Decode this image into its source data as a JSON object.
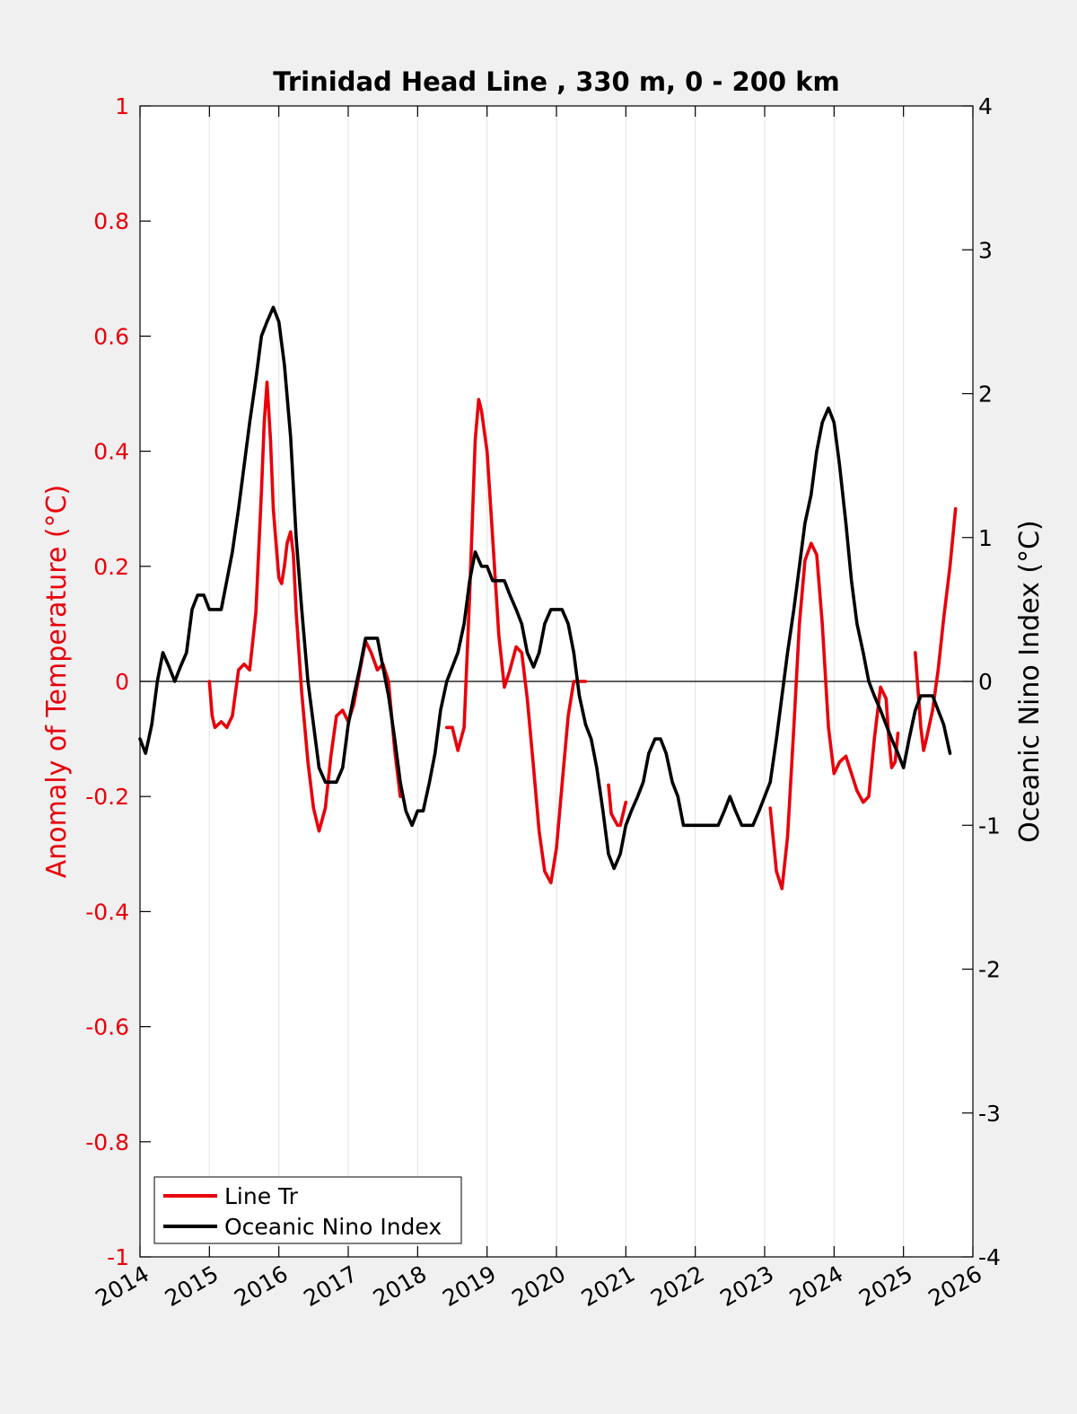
{
  "chart_data": {
    "type": "line",
    "title": "Trinidad Head Line , 330 m, 0 - 200 km",
    "ylabel_left": "Anomaly of Temperature (°C)",
    "ylabel_right": "Oceanic Nino Index (°C)",
    "xlim": [
      2014,
      2026
    ],
    "ylim_left": [
      -1,
      1
    ],
    "ylim_right": [
      -4,
      4
    ],
    "x_ticks": [
      "2014",
      "2015",
      "2016",
      "2017",
      "2018",
      "2019",
      "2020",
      "2021",
      "2022",
      "2023",
      "2024",
      "2025",
      "2026"
    ],
    "y_left_ticks": [
      "-1",
      "-0.8",
      "-0.6",
      "-0.4",
      "-0.2",
      "0",
      "0.2",
      "0.4",
      "0.6",
      "0.8",
      "1"
    ],
    "y_right_ticks": [
      "-4",
      "-3",
      "-2",
      "-1",
      "0",
      "1",
      "2",
      "3",
      "4"
    ],
    "vertical_grid": true,
    "zero_line": true,
    "legend_position": "bottom-left",
    "series": [
      {
        "name": "Line Tr",
        "axis": "left",
        "color": "#e8000b",
        "segments": [
          [
            [
              2015.0,
              0.0
            ],
            [
              2015.04,
              -0.06
            ],
            [
              2015.08,
              -0.08
            ],
            [
              2015.17,
              -0.07
            ],
            [
              2015.25,
              -0.08
            ],
            [
              2015.33,
              -0.06
            ],
            [
              2015.42,
              0.02
            ],
            [
              2015.5,
              0.03
            ],
            [
              2015.58,
              0.02
            ],
            [
              2015.67,
              0.12
            ],
            [
              2015.75,
              0.33
            ],
            [
              2015.79,
              0.45
            ],
            [
              2015.83,
              0.52
            ],
            [
              2015.88,
              0.42
            ],
            [
              2015.92,
              0.3
            ],
            [
              2016.0,
              0.18
            ],
            [
              2016.04,
              0.17
            ],
            [
              2016.08,
              0.2
            ],
            [
              2016.12,
              0.24
            ],
            [
              2016.17,
              0.26
            ],
            [
              2016.21,
              0.22
            ],
            [
              2016.25,
              0.12
            ],
            [
              2016.33,
              -0.02
            ],
            [
              2016.42,
              -0.14
            ],
            [
              2016.5,
              -0.22
            ],
            [
              2016.58,
              -0.26
            ],
            [
              2016.67,
              -0.22
            ],
            [
              2016.75,
              -0.13
            ],
            [
              2016.83,
              -0.06
            ],
            [
              2016.92,
              -0.05
            ],
            [
              2017.0,
              -0.07
            ],
            [
              2017.08,
              -0.04
            ],
            [
              2017.17,
              0.02
            ],
            [
              2017.25,
              0.07
            ],
            [
              2017.33,
              0.05
            ],
            [
              2017.42,
              0.02
            ],
            [
              2017.5,
              0.03
            ],
            [
              2017.58,
              0.0
            ],
            [
              2017.67,
              -0.12
            ],
            [
              2017.75,
              -0.2
            ]
          ],
          [
            [
              2018.42,
              -0.08
            ],
            [
              2018.5,
              -0.08
            ],
            [
              2018.58,
              -0.12
            ],
            [
              2018.67,
              -0.08
            ],
            [
              2018.75,
              0.15
            ],
            [
              2018.83,
              0.42
            ],
            [
              2018.88,
              0.49
            ],
            [
              2018.92,
              0.47
            ],
            [
              2019.0,
              0.4
            ],
            [
              2019.08,
              0.25
            ],
            [
              2019.17,
              0.08
            ],
            [
              2019.25,
              -0.01
            ],
            [
              2019.33,
              0.02
            ],
            [
              2019.42,
              0.06
            ],
            [
              2019.5,
              0.05
            ],
            [
              2019.58,
              -0.03
            ],
            [
              2019.67,
              -0.15
            ],
            [
              2019.75,
              -0.26
            ],
            [
              2019.83,
              -0.33
            ],
            [
              2019.92,
              -0.35
            ],
            [
              2020.0,
              -0.29
            ],
            [
              2020.08,
              -0.18
            ],
            [
              2020.17,
              -0.06
            ],
            [
              2020.25,
              0.0
            ],
            [
              2020.33,
              0.0
            ],
            [
              2020.42,
              0.0
            ]
          ],
          [
            [
              2020.75,
              -0.18
            ],
            [
              2020.79,
              -0.23
            ],
            [
              2020.88,
              -0.25
            ],
            [
              2020.92,
              -0.25
            ],
            [
              2021.0,
              -0.21
            ]
          ],
          [
            [
              2023.08,
              -0.22
            ],
            [
              2023.17,
              -0.33
            ],
            [
              2023.25,
              -0.36
            ],
            [
              2023.33,
              -0.27
            ],
            [
              2023.42,
              -0.08
            ],
            [
              2023.5,
              0.1
            ],
            [
              2023.58,
              0.21
            ],
            [
              2023.67,
              0.24
            ],
            [
              2023.75,
              0.22
            ],
            [
              2023.83,
              0.1
            ],
            [
              2023.92,
              -0.08
            ],
            [
              2024.0,
              -0.16
            ],
            [
              2024.08,
              -0.14
            ],
            [
              2024.17,
              -0.13
            ],
            [
              2024.25,
              -0.16
            ],
            [
              2024.33,
              -0.19
            ],
            [
              2024.42,
              -0.21
            ],
            [
              2024.5,
              -0.2
            ],
            [
              2024.58,
              -0.1
            ],
            [
              2024.67,
              -0.01
            ],
            [
              2024.75,
              -0.03
            ],
            [
              2024.79,
              -0.1
            ],
            [
              2024.83,
              -0.15
            ],
            [
              2024.88,
              -0.14
            ],
            [
              2024.92,
              -0.09
            ]
          ],
          [
            [
              2025.17,
              0.05
            ],
            [
              2025.25,
              -0.08
            ],
            [
              2025.29,
              -0.12
            ],
            [
              2025.33,
              -0.1
            ],
            [
              2025.42,
              -0.05
            ],
            [
              2025.5,
              0.02
            ],
            [
              2025.58,
              0.11
            ],
            [
              2025.67,
              0.2
            ],
            [
              2025.75,
              0.3
            ]
          ]
        ]
      },
      {
        "name": "Oceanic Nino Index",
        "axis": "right",
        "color": "#000000",
        "segments": [
          [
            [
              2014.0,
              -0.4
            ],
            [
              2014.08,
              -0.5
            ],
            [
              2014.17,
              -0.3
            ],
            [
              2014.25,
              0.0
            ],
            [
              2014.33,
              0.2
            ],
            [
              2014.42,
              0.1
            ],
            [
              2014.5,
              0.0
            ],
            [
              2014.58,
              0.1
            ],
            [
              2014.67,
              0.2
            ],
            [
              2014.75,
              0.5
            ],
            [
              2014.83,
              0.6
            ],
            [
              2014.92,
              0.6
            ],
            [
              2015.0,
              0.5
            ],
            [
              2015.08,
              0.5
            ],
            [
              2015.17,
              0.5
            ],
            [
              2015.25,
              0.7
            ],
            [
              2015.33,
              0.9
            ],
            [
              2015.42,
              1.2
            ],
            [
              2015.5,
              1.5
            ],
            [
              2015.58,
              1.8
            ],
            [
              2015.67,
              2.1
            ],
            [
              2015.75,
              2.4
            ],
            [
              2015.83,
              2.5
            ],
            [
              2015.92,
              2.6
            ],
            [
              2016.0,
              2.5
            ],
            [
              2016.08,
              2.2
            ],
            [
              2016.17,
              1.7
            ],
            [
              2016.25,
              1.0
            ],
            [
              2016.33,
              0.5
            ],
            [
              2016.42,
              0.0
            ],
            [
              2016.5,
              -0.3
            ],
            [
              2016.58,
              -0.6
            ],
            [
              2016.67,
              -0.7
            ],
            [
              2016.75,
              -0.7
            ],
            [
              2016.83,
              -0.7
            ],
            [
              2016.92,
              -0.6
            ],
            [
              2017.0,
              -0.3
            ],
            [
              2017.08,
              -0.1
            ],
            [
              2017.17,
              0.1
            ],
            [
              2017.25,
              0.3
            ],
            [
              2017.33,
              0.3
            ],
            [
              2017.42,
              0.3
            ],
            [
              2017.5,
              0.1
            ],
            [
              2017.58,
              -0.1
            ],
            [
              2017.67,
              -0.4
            ],
            [
              2017.75,
              -0.7
            ],
            [
              2017.83,
              -0.9
            ],
            [
              2017.92,
              -1.0
            ],
            [
              2018.0,
              -0.9
            ],
            [
              2018.08,
              -0.9
            ],
            [
              2018.17,
              -0.7
            ],
            [
              2018.25,
              -0.5
            ],
            [
              2018.33,
              -0.2
            ],
            [
              2018.42,
              0.0
            ],
            [
              2018.5,
              0.1
            ],
            [
              2018.58,
              0.2
            ],
            [
              2018.67,
              0.4
            ],
            [
              2018.75,
              0.7
            ],
            [
              2018.83,
              0.9
            ],
            [
              2018.92,
              0.8
            ],
            [
              2019.0,
              0.8
            ],
            [
              2019.08,
              0.7
            ],
            [
              2019.17,
              0.7
            ],
            [
              2019.25,
              0.7
            ],
            [
              2019.33,
              0.6
            ],
            [
              2019.42,
              0.5
            ],
            [
              2019.5,
              0.4
            ],
            [
              2019.58,
              0.2
            ],
            [
              2019.67,
              0.1
            ],
            [
              2019.75,
              0.2
            ],
            [
              2019.83,
              0.4
            ],
            [
              2019.92,
              0.5
            ],
            [
              2020.0,
              0.5
            ],
            [
              2020.08,
              0.5
            ],
            [
              2020.17,
              0.4
            ],
            [
              2020.25,
              0.2
            ],
            [
              2020.33,
              -0.1
            ],
            [
              2020.42,
              -0.3
            ],
            [
              2020.5,
              -0.4
            ],
            [
              2020.58,
              -0.6
            ],
            [
              2020.67,
              -0.9
            ],
            [
              2020.75,
              -1.2
            ],
            [
              2020.83,
              -1.3
            ],
            [
              2020.92,
              -1.2
            ],
            [
              2021.0,
              -1.0
            ],
            [
              2021.08,
              -0.9
            ],
            [
              2021.17,
              -0.8
            ],
            [
              2021.25,
              -0.7
            ],
            [
              2021.33,
              -0.5
            ],
            [
              2021.42,
              -0.4
            ],
            [
              2021.5,
              -0.4
            ],
            [
              2021.58,
              -0.5
            ],
            [
              2021.67,
              -0.7
            ],
            [
              2021.75,
              -0.8
            ],
            [
              2021.83,
              -1.0
            ],
            [
              2021.92,
              -1.0
            ],
            [
              2022.0,
              -1.0
            ],
            [
              2022.08,
              -1.0
            ],
            [
              2022.17,
              -1.0
            ],
            [
              2022.25,
              -1.0
            ],
            [
              2022.33,
              -1.0
            ],
            [
              2022.42,
              -0.9
            ],
            [
              2022.5,
              -0.8
            ],
            [
              2022.58,
              -0.9
            ],
            [
              2022.67,
              -1.0
            ],
            [
              2022.75,
              -1.0
            ],
            [
              2022.83,
              -1.0
            ],
            [
              2022.92,
              -0.9
            ],
            [
              2023.0,
              -0.8
            ],
            [
              2023.08,
              -0.7
            ],
            [
              2023.17,
              -0.4
            ],
            [
              2023.25,
              -0.1
            ],
            [
              2023.33,
              0.2
            ],
            [
              2023.42,
              0.5
            ],
            [
              2023.5,
              0.8
            ],
            [
              2023.58,
              1.1
            ],
            [
              2023.67,
              1.3
            ],
            [
              2023.75,
              1.6
            ],
            [
              2023.83,
              1.8
            ],
            [
              2023.92,
              1.9
            ],
            [
              2024.0,
              1.8
            ],
            [
              2024.08,
              1.5
            ],
            [
              2024.17,
              1.1
            ],
            [
              2024.25,
              0.7
            ],
            [
              2024.33,
              0.4
            ],
            [
              2024.42,
              0.2
            ],
            [
              2024.5,
              0.0
            ],
            [
              2024.58,
              -0.1
            ],
            [
              2024.67,
              -0.2
            ],
            [
              2024.75,
              -0.3
            ],
            [
              2024.83,
              -0.4
            ],
            [
              2024.92,
              -0.5
            ],
            [
              2025.0,
              -0.6
            ],
            [
              2025.08,
              -0.4
            ],
            [
              2025.17,
              -0.2
            ],
            [
              2025.25,
              -0.1
            ],
            [
              2025.33,
              -0.1
            ],
            [
              2025.42,
              -0.1
            ],
            [
              2025.5,
              -0.2
            ],
            [
              2025.58,
              -0.3
            ],
            [
              2025.67,
              -0.5
            ]
          ]
        ]
      }
    ]
  }
}
